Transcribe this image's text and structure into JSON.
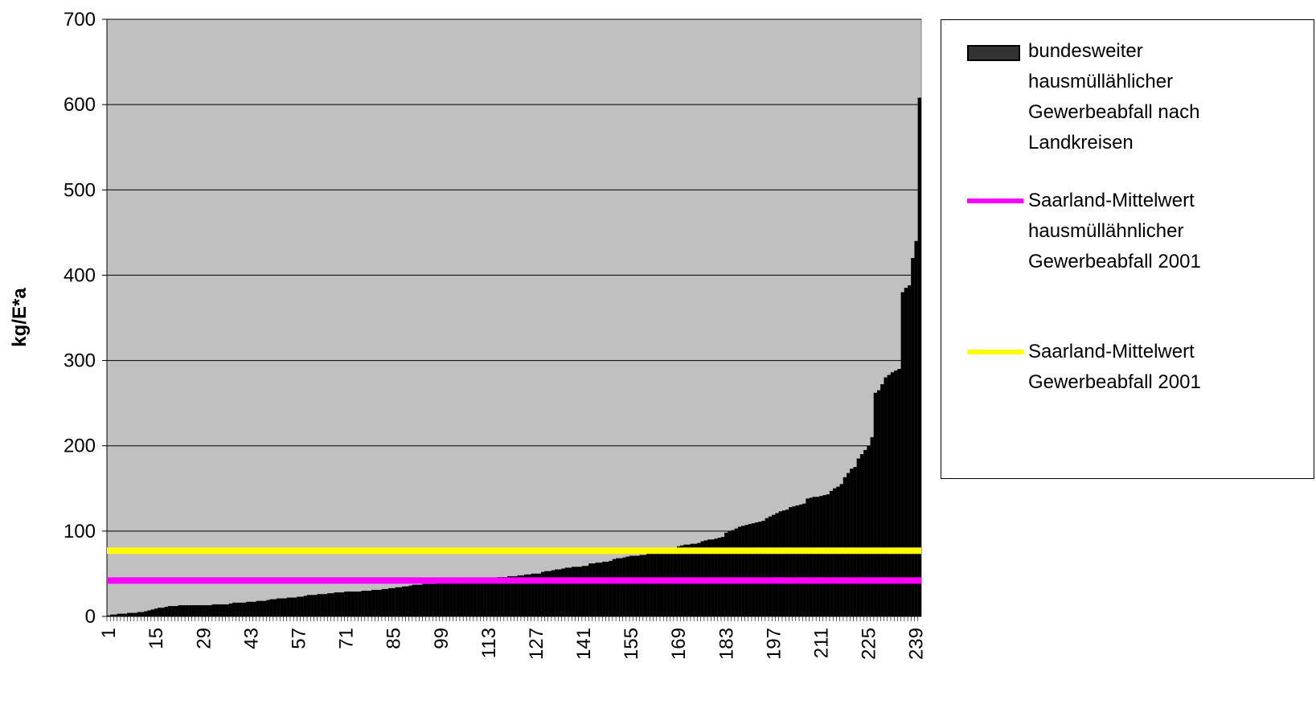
{
  "chart_data": {
    "type": "bar",
    "ylabel": "kg/E*a",
    "series": [
      {
        "name": "bundesweiter hausmüllählicher Gewerbeabfall nach Landkreisen",
        "color": "#000000",
        "values": [
          1,
          2,
          2,
          3,
          3,
          3,
          4,
          4,
          4,
          5,
          5,
          6,
          7,
          8,
          9,
          10,
          10,
          11,
          12,
          12,
          12,
          13,
          13,
          13,
          13,
          13,
          13,
          13,
          13,
          13,
          13,
          14,
          14,
          14,
          14,
          14,
          15,
          16,
          16,
          16,
          16,
          17,
          17,
          17,
          18,
          18,
          18,
          19,
          20,
          20,
          21,
          21,
          21,
          22,
          22,
          22,
          23,
          23,
          24,
          25,
          25,
          25,
          26,
          26,
          26,
          27,
          27,
          28,
          28,
          28,
          29,
          29,
          29,
          29,
          29,
          30,
          30,
          30,
          31,
          31,
          31,
          32,
          32,
          33,
          33,
          34,
          34,
          35,
          35,
          36,
          37,
          37,
          37,
          38,
          38,
          38,
          38,
          39,
          39,
          39,
          39,
          40,
          40,
          40,
          40,
          40,
          41,
          41,
          41,
          41,
          42,
          42,
          42,
          45,
          45,
          46,
          46,
          46,
          47,
          47,
          47,
          48,
          48,
          49,
          49,
          50,
          50,
          50,
          52,
          53,
          53,
          54,
          55,
          55,
          56,
          57,
          57,
          58,
          58,
          58,
          59,
          59,
          62,
          62,
          63,
          63,
          64,
          64,
          65,
          67,
          68,
          68,
          69,
          70,
          71,
          71,
          71,
          72,
          72,
          74,
          74,
          75,
          75,
          76,
          77,
          78,
          79,
          80,
          82,
          83,
          84,
          84,
          85,
          85,
          86,
          88,
          89,
          90,
          90,
          91,
          92,
          93,
          98,
          100,
          101,
          103,
          105,
          106,
          107,
          108,
          109,
          110,
          111,
          112,
          115,
          117,
          119,
          121,
          123,
          124,
          125,
          128,
          129,
          130,
          131,
          132,
          138,
          139,
          140,
          140,
          141,
          142,
          143,
          147,
          150,
          152,
          155,
          163,
          168,
          173,
          175,
          185,
          190,
          195,
          200,
          210,
          262,
          265,
          272,
          280,
          283,
          286,
          288,
          290,
          380,
          385,
          388,
          420,
          440,
          608
        ]
      }
    ],
    "reference_lines": [
      {
        "name": "Saarland-Mittelwert hausmüllähnlicher Gewerbeabfall 2001",
        "color": "#ff00ff",
        "value": 42
      },
      {
        "name": "Saarland-Mittelwert Gewerbeabfall 2001",
        "color": "#ffff00",
        "value": 77
      }
    ],
    "categories": [
      "1",
      null,
      null,
      null,
      null,
      null,
      null,
      null,
      null,
      null,
      null,
      null,
      null,
      null,
      "15",
      null,
      null,
      null,
      null,
      null,
      null,
      null,
      null,
      null,
      null,
      null,
      null,
      null,
      "29",
      null,
      null,
      null,
      null,
      null,
      null,
      null,
      null,
      null,
      null,
      null,
      null,
      null,
      "43",
      null,
      null,
      null,
      null,
      null,
      null,
      null,
      null,
      null,
      null,
      null,
      null,
      null,
      "57",
      null,
      null,
      null,
      null,
      null,
      null,
      null,
      null,
      null,
      null,
      null,
      null,
      null,
      "71",
      null,
      null,
      null,
      null,
      null,
      null,
      null,
      null,
      null,
      null,
      null,
      null,
      null,
      "85",
      null,
      null,
      null,
      null,
      null,
      null,
      null,
      null,
      null,
      null,
      null,
      null,
      null,
      "99",
      null,
      null,
      null,
      null,
      null,
      null,
      null,
      null,
      null,
      null,
      null,
      null,
      null,
      "113",
      null,
      null,
      null,
      null,
      null,
      null,
      null,
      null,
      null,
      null,
      null,
      null,
      null,
      "127",
      null,
      null,
      null,
      null,
      null,
      null,
      null,
      null,
      null,
      null,
      null,
      null,
      null,
      "141",
      null,
      null,
      null,
      null,
      null,
      null,
      null,
      null,
      null,
      null,
      null,
      null,
      null,
      "155",
      null,
      null,
      null,
      null,
      null,
      null,
      null,
      null,
      null,
      null,
      null,
      null,
      null,
      "169",
      null,
      null,
      null,
      null,
      null,
      null,
      null,
      null,
      null,
      null,
      null,
      null,
      null,
      "183",
      null,
      null,
      null,
      null,
      null,
      null,
      null,
      null,
      null,
      null,
      null,
      null,
      null,
      "197",
      null,
      null,
      null,
      null,
      null,
      null,
      null,
      null,
      null,
      null,
      null,
      null,
      null,
      "211",
      null,
      null,
      null,
      null,
      null,
      null,
      null,
      null,
      null,
      null,
      null,
      null,
      null,
      "225",
      null,
      null,
      null,
      null,
      null,
      null,
      null,
      null,
      null,
      null,
      null,
      null,
      null,
      "239",
      null
    ],
    "ylim": [
      0,
      700
    ],
    "yticks": [
      0,
      100,
      200,
      300,
      400,
      500,
      600,
      700
    ],
    "grid": true,
    "plot_background": "#c0c0c0",
    "legend": "right"
  }
}
